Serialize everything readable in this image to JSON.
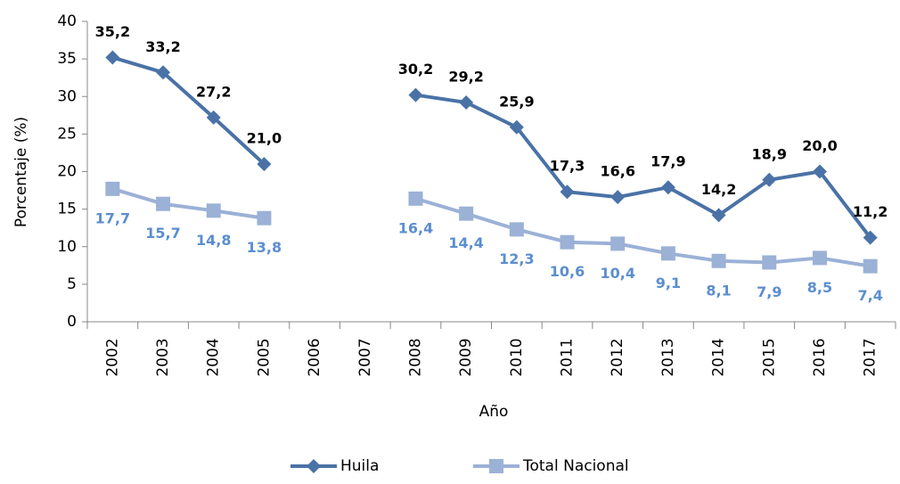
{
  "chart_data": {
    "type": "line",
    "x_label": "Año",
    "y_label": "Porcentaje (%)",
    "categories": [
      "2002",
      "2003",
      "2004",
      "2005",
      "2006",
      "2007",
      "2008",
      "2009",
      "2010",
      "2011",
      "2012",
      "2013",
      "2014",
      "2015",
      "2016",
      "2017"
    ],
    "series": [
      {
        "name": "Huila",
        "color": "#4a72a6",
        "marker": "diamond",
        "label_color": "#000000",
        "values": [
          35.2,
          33.2,
          27.2,
          21.0,
          null,
          null,
          30.2,
          29.2,
          25.9,
          17.3,
          16.6,
          17.9,
          14.2,
          18.9,
          20.0,
          11.2
        ],
        "value_labels": [
          "35,2",
          "33,2",
          "27,2",
          "21,0",
          null,
          null,
          "30,2",
          "29,2",
          "25,9",
          "17,3",
          "16,6",
          "17,9",
          "14,2",
          "18,9",
          "20,0",
          "11,2"
        ]
      },
      {
        "name": "Total Nacional",
        "color": "#9bb1d6",
        "marker": "square",
        "label_color": "#5b8ed0",
        "values": [
          17.7,
          15.7,
          14.8,
          13.8,
          null,
          null,
          16.4,
          14.4,
          12.3,
          10.6,
          10.4,
          9.1,
          8.1,
          7.9,
          8.5,
          7.4
        ],
        "value_labels": [
          "17,7",
          "15,7",
          "14,8",
          "13,8",
          null,
          null,
          "16,4",
          "14,4",
          "12,3",
          "10,6",
          "10,4",
          "9,1",
          "8,1",
          "7,9",
          "8,5",
          "7,4"
        ]
      }
    ],
    "ylim": [
      0,
      40
    ],
    "yticks": [
      0,
      5,
      10,
      15,
      20,
      25,
      30,
      35,
      40
    ],
    "grid": false
  }
}
